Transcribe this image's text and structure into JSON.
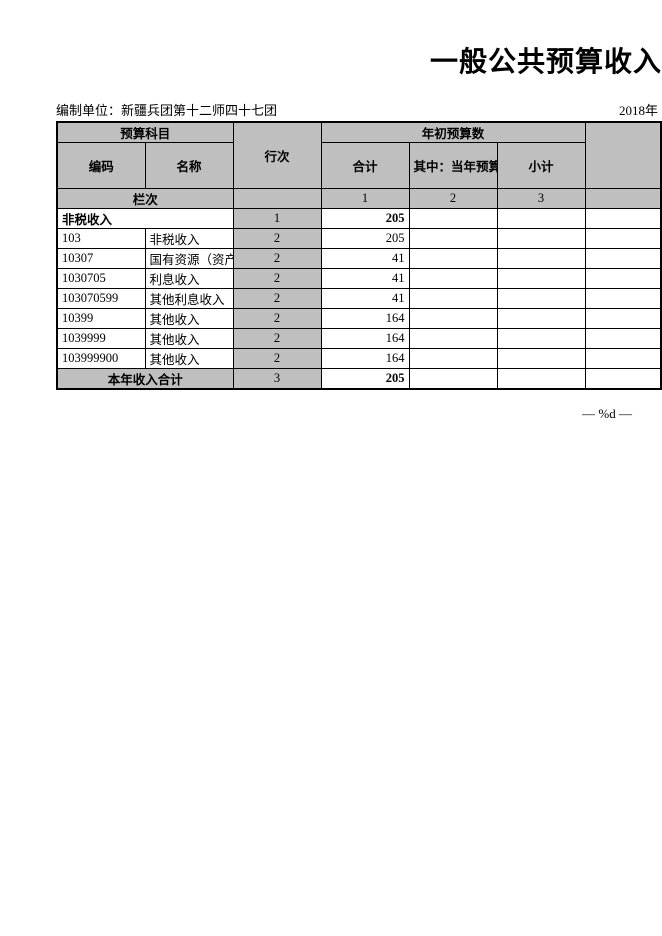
{
  "title": "一般公共预算收入",
  "meta": {
    "org_label": "编制单位：新疆兵团第十二师四十七团",
    "year": "2018年"
  },
  "headers": {
    "subject": "预算科目",
    "code": "编码",
    "name": "名称",
    "row_no": "行次",
    "year_begin": "年初预算数",
    "total": "合计",
    "of_which": "其中：当年预算数",
    "subtotal": "小计",
    "column_label": "栏次"
  },
  "col_index": {
    "c1": "1",
    "c2": "2",
    "c3": "3"
  },
  "rows": [
    {
      "code": "非税收入",
      "name": "",
      "hc": "1",
      "hj": "205",
      "qz": "",
      "xj": "",
      "span": true,
      "bold": true
    },
    {
      "code": "103",
      "name": "非税收入",
      "hc": "2",
      "hj": "205",
      "qz": "",
      "xj": ""
    },
    {
      "code": "10307",
      "name": "国有资源（资产",
      "hc": "2",
      "hj": "41",
      "qz": "",
      "xj": ""
    },
    {
      "code": "1030705",
      "name": "利息收入",
      "hc": "2",
      "hj": "41",
      "qz": "",
      "xj": ""
    },
    {
      "code": "103070599",
      "name": "  其他利息收入",
      "hc": "2",
      "hj": "41",
      "qz": "",
      "xj": ""
    },
    {
      "code": "10399",
      "name": "其他收入",
      "hc": "2",
      "hj": "164",
      "qz": "",
      "xj": ""
    },
    {
      "code": "1039999",
      "name": "其他收入",
      "hc": "2",
      "hj": "164",
      "qz": "",
      "xj": ""
    },
    {
      "code": "103999900",
      "name": "  其他收入",
      "hc": "2",
      "hj": "164",
      "qz": "",
      "xj": ""
    }
  ],
  "total_row": {
    "label": "本年收入合计",
    "hc": "3",
    "hj": "205",
    "qz": "",
    "xj": ""
  },
  "footer": "— %d —",
  "style": {
    "header_bg": "#bfbfbf",
    "border_color": "#000000",
    "page_bg": "#ffffff",
    "title_fontsize": 28,
    "body_fontsize": 13
  }
}
